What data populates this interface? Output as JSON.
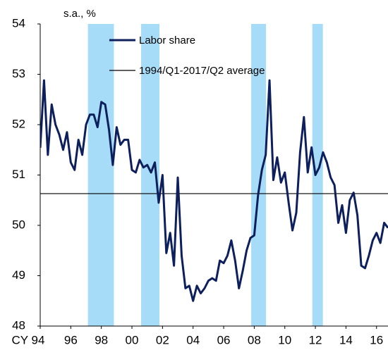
{
  "chart_data": {
    "type": "line",
    "ylabel": "s.a., %",
    "x": [
      1994,
      1994.25,
      1994.5,
      1994.75,
      1995,
      1995.25,
      1995.5,
      1995.75,
      1996,
      1996.25,
      1996.5,
      1996.75,
      1997,
      1997.25,
      1997.5,
      1997.75,
      1998,
      1998.25,
      1998.5,
      1998.75,
      1999,
      1999.25,
      1999.5,
      1999.75,
      2000,
      2000.25,
      2000.5,
      2000.75,
      2001,
      2001.25,
      2001.5,
      2001.75,
      2002,
      2002.25,
      2002.5,
      2002.75,
      2003,
      2003.25,
      2003.5,
      2003.75,
      2004,
      2004.25,
      2004.5,
      2004.75,
      2005,
      2005.25,
      2005.5,
      2005.75,
      2006,
      2006.25,
      2006.5,
      2006.75,
      2007,
      2007.25,
      2007.5,
      2007.75,
      2008,
      2008.25,
      2008.5,
      2008.75,
      2009,
      2009.25,
      2009.5,
      2009.75,
      2010,
      2010.25,
      2010.5,
      2010.75,
      2011,
      2011.25,
      2011.5,
      2011.75,
      2012,
      2012.25,
      2012.5,
      2012.75,
      2013,
      2013.25,
      2013.5,
      2013.75,
      2014,
      2014.25,
      2014.5,
      2014.75,
      2015,
      2015.25,
      2015.5,
      2015.75,
      2016,
      2016.25,
      2016.5,
      2016.75
    ],
    "series": [
      {
        "name": "Labor share",
        "color": "#0d1f5c",
        "values": [
          51.54,
          52.88,
          51.4,
          52.4,
          52.0,
          51.8,
          51.5,
          51.85,
          51.25,
          51.1,
          51.7,
          51.4,
          52.0,
          52.2,
          52.2,
          51.95,
          52.45,
          52.4,
          51.9,
          51.2,
          51.95,
          51.6,
          51.7,
          51.7,
          51.1,
          51.05,
          51.3,
          51.15,
          51.2,
          51.05,
          51.25,
          50.45,
          51.0,
          49.45,
          49.85,
          49.2,
          50.95,
          49.4,
          48.75,
          48.8,
          48.5,
          48.8,
          48.65,
          48.75,
          48.9,
          48.95,
          48.9,
          49.3,
          49.25,
          49.4,
          49.7,
          49.3,
          48.75,
          49.1,
          49.5,
          49.75,
          49.8,
          50.6,
          51.1,
          51.4,
          52.88,
          50.9,
          51.35,
          50.85,
          51.05,
          50.45,
          49.9,
          50.25,
          51.45,
          52.15,
          51.05,
          51.55,
          51.0,
          51.15,
          51.45,
          51.25,
          50.95,
          50.8,
          50.05,
          50.4,
          49.85,
          50.5,
          50.65,
          50.2,
          49.2,
          49.15,
          49.4,
          49.7,
          49.85,
          49.65,
          50.05,
          49.95
        ]
      }
    ],
    "reference_line": {
      "label": "1994/Q1-2017/Q2 average",
      "value": 50.63,
      "color": "#000000"
    },
    "shaded_periods": {
      "color": "#a6dcf8",
      "ranges": [
        [
          1997.12,
          1998.82
        ],
        [
          2000.6,
          2001.8
        ],
        [
          2007.8,
          2008.77
        ],
        [
          2011.8,
          2012.49
        ]
      ]
    },
    "xlim": [
      1994,
      2016.75
    ],
    "xticks": [
      {
        "value": 1994,
        "label": "CY 94"
      },
      {
        "value": 1996,
        "label": "96"
      },
      {
        "value": 1998,
        "label": "98"
      },
      {
        "value": 2000,
        "label": "00"
      },
      {
        "value": 2002,
        "label": "02"
      },
      {
        "value": 2004,
        "label": "04"
      },
      {
        "value": 2006,
        "label": "06"
      },
      {
        "value": 2008,
        "label": "08"
      },
      {
        "value": 2010,
        "label": "10"
      },
      {
        "value": 2012,
        "label": "12"
      },
      {
        "value": 2014,
        "label": "14"
      },
      {
        "value": 2016,
        "label": "16"
      }
    ],
    "ylim": [
      48,
      54
    ],
    "yticks": [
      48,
      49,
      50,
      51,
      52,
      53,
      54
    ],
    "grid": false
  }
}
